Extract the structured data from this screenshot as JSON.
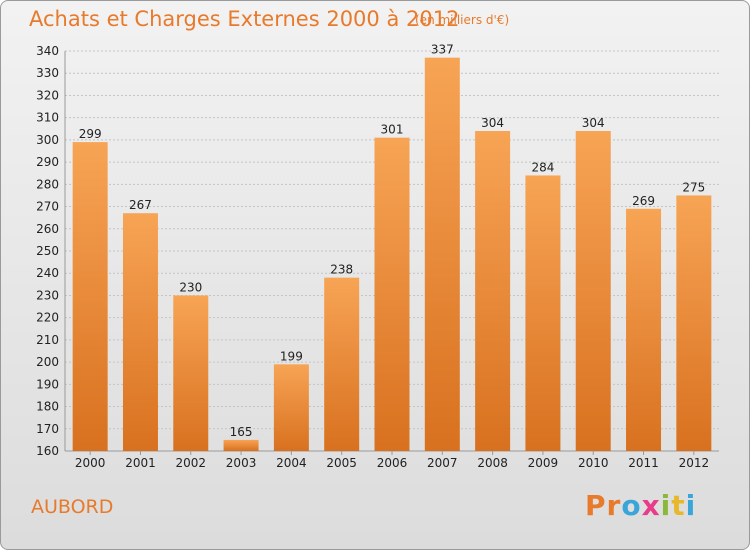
{
  "chart_data": {
    "type": "bar",
    "title": "Achats et Charges Externes 2000 à 2012",
    "subtitle": "(en milliers d'€)",
    "categories": [
      "2000",
      "2001",
      "2002",
      "2003",
      "2004",
      "2005",
      "2006",
      "2007",
      "2008",
      "2009",
      "2010",
      "2011",
      "2012"
    ],
    "values": [
      299,
      267,
      230,
      165,
      199,
      238,
      301,
      337,
      304,
      284,
      304,
      269,
      275
    ],
    "ylim": [
      160,
      340
    ],
    "ytick_step": 10,
    "grid": true,
    "bar_color_top": "#f7a455",
    "bar_color_bottom": "#d8711f",
    "xlabel": "",
    "ylabel": ""
  },
  "commune": "AUBORD",
  "logo": {
    "text": "Proxiti",
    "letter_colors": [
      "#e87a2c",
      "#e87a2c",
      "#3aa5d9",
      "#e83c8a",
      "#8ab83a",
      "#e8b82c",
      "#3aa5d9"
    ]
  }
}
